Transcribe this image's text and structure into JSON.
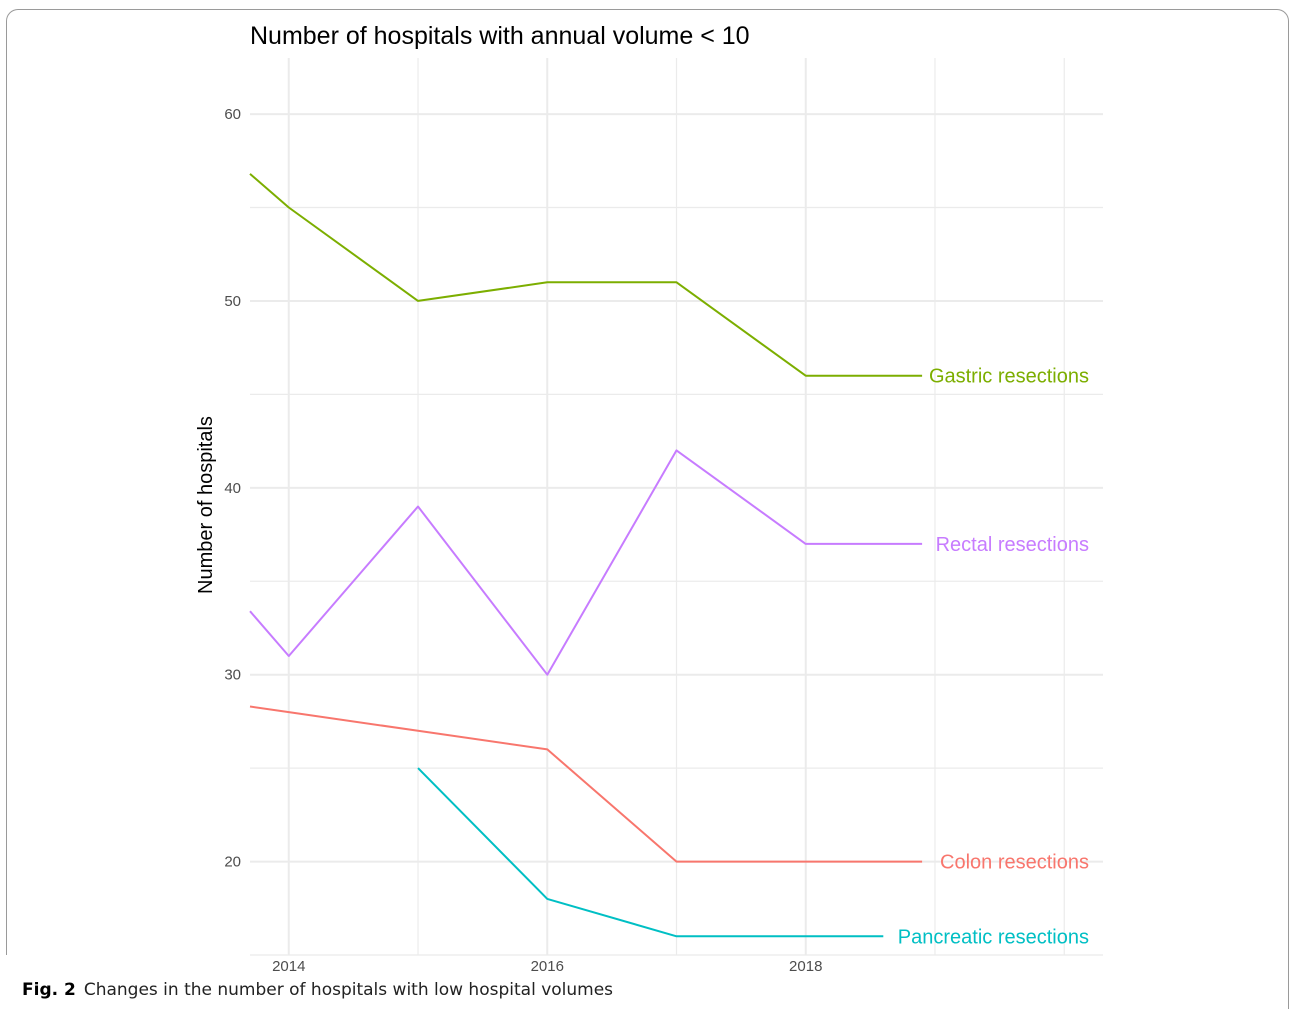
{
  "caption": {
    "label": "Fig. 2",
    "text": "Changes in the number of hospitals with low hospital volumes"
  },
  "chart_data": {
    "type": "line",
    "title": "Number of hospitals with annual volume < 10",
    "xlabel": "",
    "ylabel": "Number of hospitals",
    "xlim": [
      2013.7,
      2020.3
    ],
    "ylim": [
      15,
      63
    ],
    "x_ticks": [
      2014,
      2016,
      2018
    ],
    "y_ticks": [
      20,
      30,
      40,
      50,
      60
    ],
    "grid": true,
    "legend": "direct-labels-right",
    "series": [
      {
        "name": "Gastric resections",
        "color": "#7CAE00",
        "x": [
          2013.7,
          2014,
          2015,
          2016,
          2017,
          2018,
          2018.9
        ],
        "values": [
          56.8,
          55,
          50,
          51,
          51,
          46,
          46
        ]
      },
      {
        "name": "Rectal resections",
        "color": "#C77CFF",
        "x": [
          2013.7,
          2014,
          2015,
          2016,
          2017,
          2018,
          2018.9
        ],
        "values": [
          33.4,
          31,
          39,
          30,
          42,
          37,
          37
        ]
      },
      {
        "name": "Colon resections",
        "color": "#F8766D",
        "x": [
          2013.7,
          2014,
          2015,
          2016,
          2017,
          2018,
          2018.9
        ],
        "values": [
          28.3,
          28,
          27,
          26,
          20,
          20,
          20
        ]
      },
      {
        "name": "Pancreatic resections",
        "color": "#00BFC4",
        "x": [
          2015,
          2016,
          2017,
          2018,
          2018.6
        ],
        "values": [
          25,
          18,
          16,
          16,
          16
        ]
      }
    ]
  }
}
